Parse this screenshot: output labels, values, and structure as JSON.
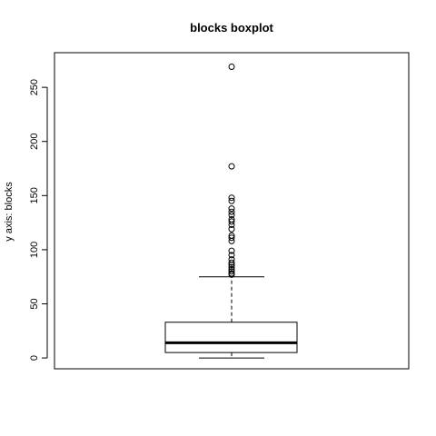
{
  "chart_data": {
    "type": "boxplot",
    "title": "blocks boxplot",
    "ylabel": "y axis: blocks",
    "xlabel": "",
    "ylim": [
      -10,
      282
    ],
    "yticks": [
      0,
      50,
      100,
      150,
      200,
      250
    ],
    "box": {
      "whisker_low": 0,
      "q1": 5,
      "median": 14,
      "q3": 33,
      "whisker_high": 75
    },
    "outliers": [
      77,
      78,
      80,
      82,
      84,
      86,
      88,
      91,
      95,
      99,
      108,
      111,
      113,
      119,
      123,
      126,
      128,
      132,
      135,
      138,
      145,
      148,
      177,
      269
    ]
  }
}
